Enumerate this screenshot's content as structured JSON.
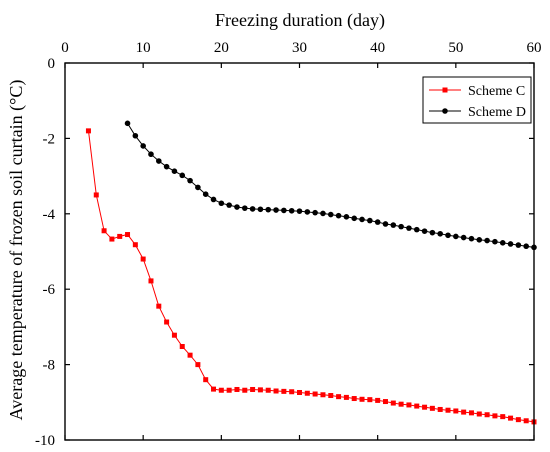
{
  "chart_data": {
    "type": "line",
    "title": "",
    "xlabel": "Freezing duration (day)",
    "ylabel": "Average temperature of frozen soil curtain (°C)",
    "xlim": [
      0,
      60
    ],
    "ylim": [
      -10,
      0
    ],
    "xticks": [
      0,
      10,
      20,
      30,
      40,
      50,
      60
    ],
    "yticks": [
      0,
      -2,
      -4,
      -6,
      -8,
      -10
    ],
    "x_axis_position": "top",
    "grid": false,
    "legend_position": "top-right",
    "series": [
      {
        "name": "Scheme C",
        "color": "#ff0000",
        "marker": "square",
        "x": [
          3,
          4,
          5,
          6,
          7,
          8,
          9,
          10,
          11,
          12,
          13,
          14,
          15,
          16,
          17,
          18,
          19,
          20,
          21,
          22,
          23,
          24,
          25,
          26,
          27,
          28,
          29,
          30,
          31,
          32,
          33,
          34,
          35,
          36,
          37,
          38,
          39,
          40,
          41,
          42,
          43,
          44,
          45,
          46,
          47,
          48,
          49,
          50,
          51,
          52,
          53,
          54,
          55,
          56,
          57,
          58,
          59,
          60
        ],
        "y": [
          -1.8,
          -3.5,
          -4.45,
          -4.67,
          -4.6,
          -4.55,
          -4.82,
          -5.2,
          -5.78,
          -6.45,
          -6.87,
          -7.22,
          -7.52,
          -7.75,
          -8.0,
          -8.4,
          -8.65,
          -8.68,
          -8.68,
          -8.66,
          -8.68,
          -8.66,
          -8.67,
          -8.68,
          -8.7,
          -8.71,
          -8.72,
          -8.74,
          -8.76,
          -8.78,
          -8.8,
          -8.82,
          -8.85,
          -8.87,
          -8.9,
          -8.92,
          -8.93,
          -8.95,
          -8.98,
          -9.02,
          -9.05,
          -9.07,
          -9.1,
          -9.13,
          -9.16,
          -9.19,
          -9.21,
          -9.23,
          -9.26,
          -9.28,
          -9.31,
          -9.33,
          -9.36,
          -9.38,
          -9.42,
          -9.46,
          -9.49,
          -9.52
        ]
      },
      {
        "name": "Scheme D",
        "color": "#000000",
        "marker": "circle",
        "x": [
          8,
          9,
          10,
          11,
          12,
          13,
          14,
          15,
          16,
          17,
          18,
          19,
          20,
          21,
          22,
          23,
          24,
          25,
          26,
          27,
          28,
          29,
          30,
          31,
          32,
          33,
          34,
          35,
          36,
          37,
          38,
          39,
          40,
          41,
          42,
          43,
          44,
          45,
          46,
          47,
          48,
          49,
          50,
          51,
          52,
          53,
          54,
          55,
          56,
          57,
          58,
          59,
          60
        ],
        "y": [
          -1.6,
          -1.93,
          -2.2,
          -2.42,
          -2.6,
          -2.75,
          -2.87,
          -2.98,
          -3.12,
          -3.3,
          -3.48,
          -3.62,
          -3.72,
          -3.77,
          -3.82,
          -3.85,
          -3.87,
          -3.88,
          -3.89,
          -3.9,
          -3.91,
          -3.92,
          -3.93,
          -3.95,
          -3.97,
          -3.99,
          -4.02,
          -4.05,
          -4.08,
          -4.12,
          -4.15,
          -4.18,
          -4.22,
          -4.27,
          -4.3,
          -4.34,
          -4.38,
          -4.42,
          -4.46,
          -4.5,
          -4.53,
          -4.57,
          -4.6,
          -4.63,
          -4.66,
          -4.69,
          -4.71,
          -4.74,
          -4.77,
          -4.8,
          -4.83,
          -4.86,
          -4.89
        ]
      }
    ]
  }
}
